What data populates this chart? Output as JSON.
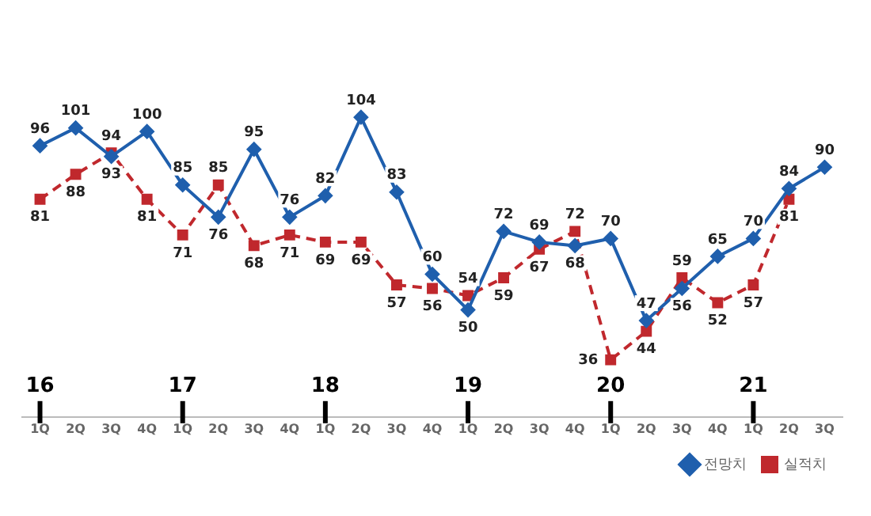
{
  "chart_data": {
    "type": "line",
    "categories": [
      "1Q",
      "2Q",
      "3Q",
      "4Q",
      "1Q",
      "2Q",
      "3Q",
      "4Q",
      "1Q",
      "2Q",
      "3Q",
      "4Q",
      "1Q",
      "2Q",
      "3Q",
      "4Q",
      "1Q",
      "2Q",
      "3Q",
      "4Q",
      "1Q",
      "2Q",
      "3Q"
    ],
    "series": [
      {
        "name": "전망치",
        "color": "#1f5fad",
        "marker": "diamond",
        "line_style": "solid",
        "values": [
          96,
          101,
          93,
          100,
          85,
          76,
          95,
          76,
          82,
          104,
          83,
          60,
          50,
          72,
          69,
          68,
          70,
          47,
          56,
          65,
          70,
          84,
          90
        ]
      },
      {
        "name": "실적치",
        "color": "#c0282d",
        "marker": "square",
        "line_style": "dashed",
        "values": [
          81,
          88,
          94,
          81,
          71,
          85,
          68,
          71,
          69,
          69,
          57,
          56,
          54,
          59,
          67,
          72,
          36,
          44,
          59,
          52,
          57,
          81,
          null
        ]
      }
    ],
    "annotations": [
      "16",
      "17",
      "18",
      "19",
      "20",
      "21"
    ],
    "data_labels": true,
    "legend": "bottom right",
    "grid": false
  }
}
